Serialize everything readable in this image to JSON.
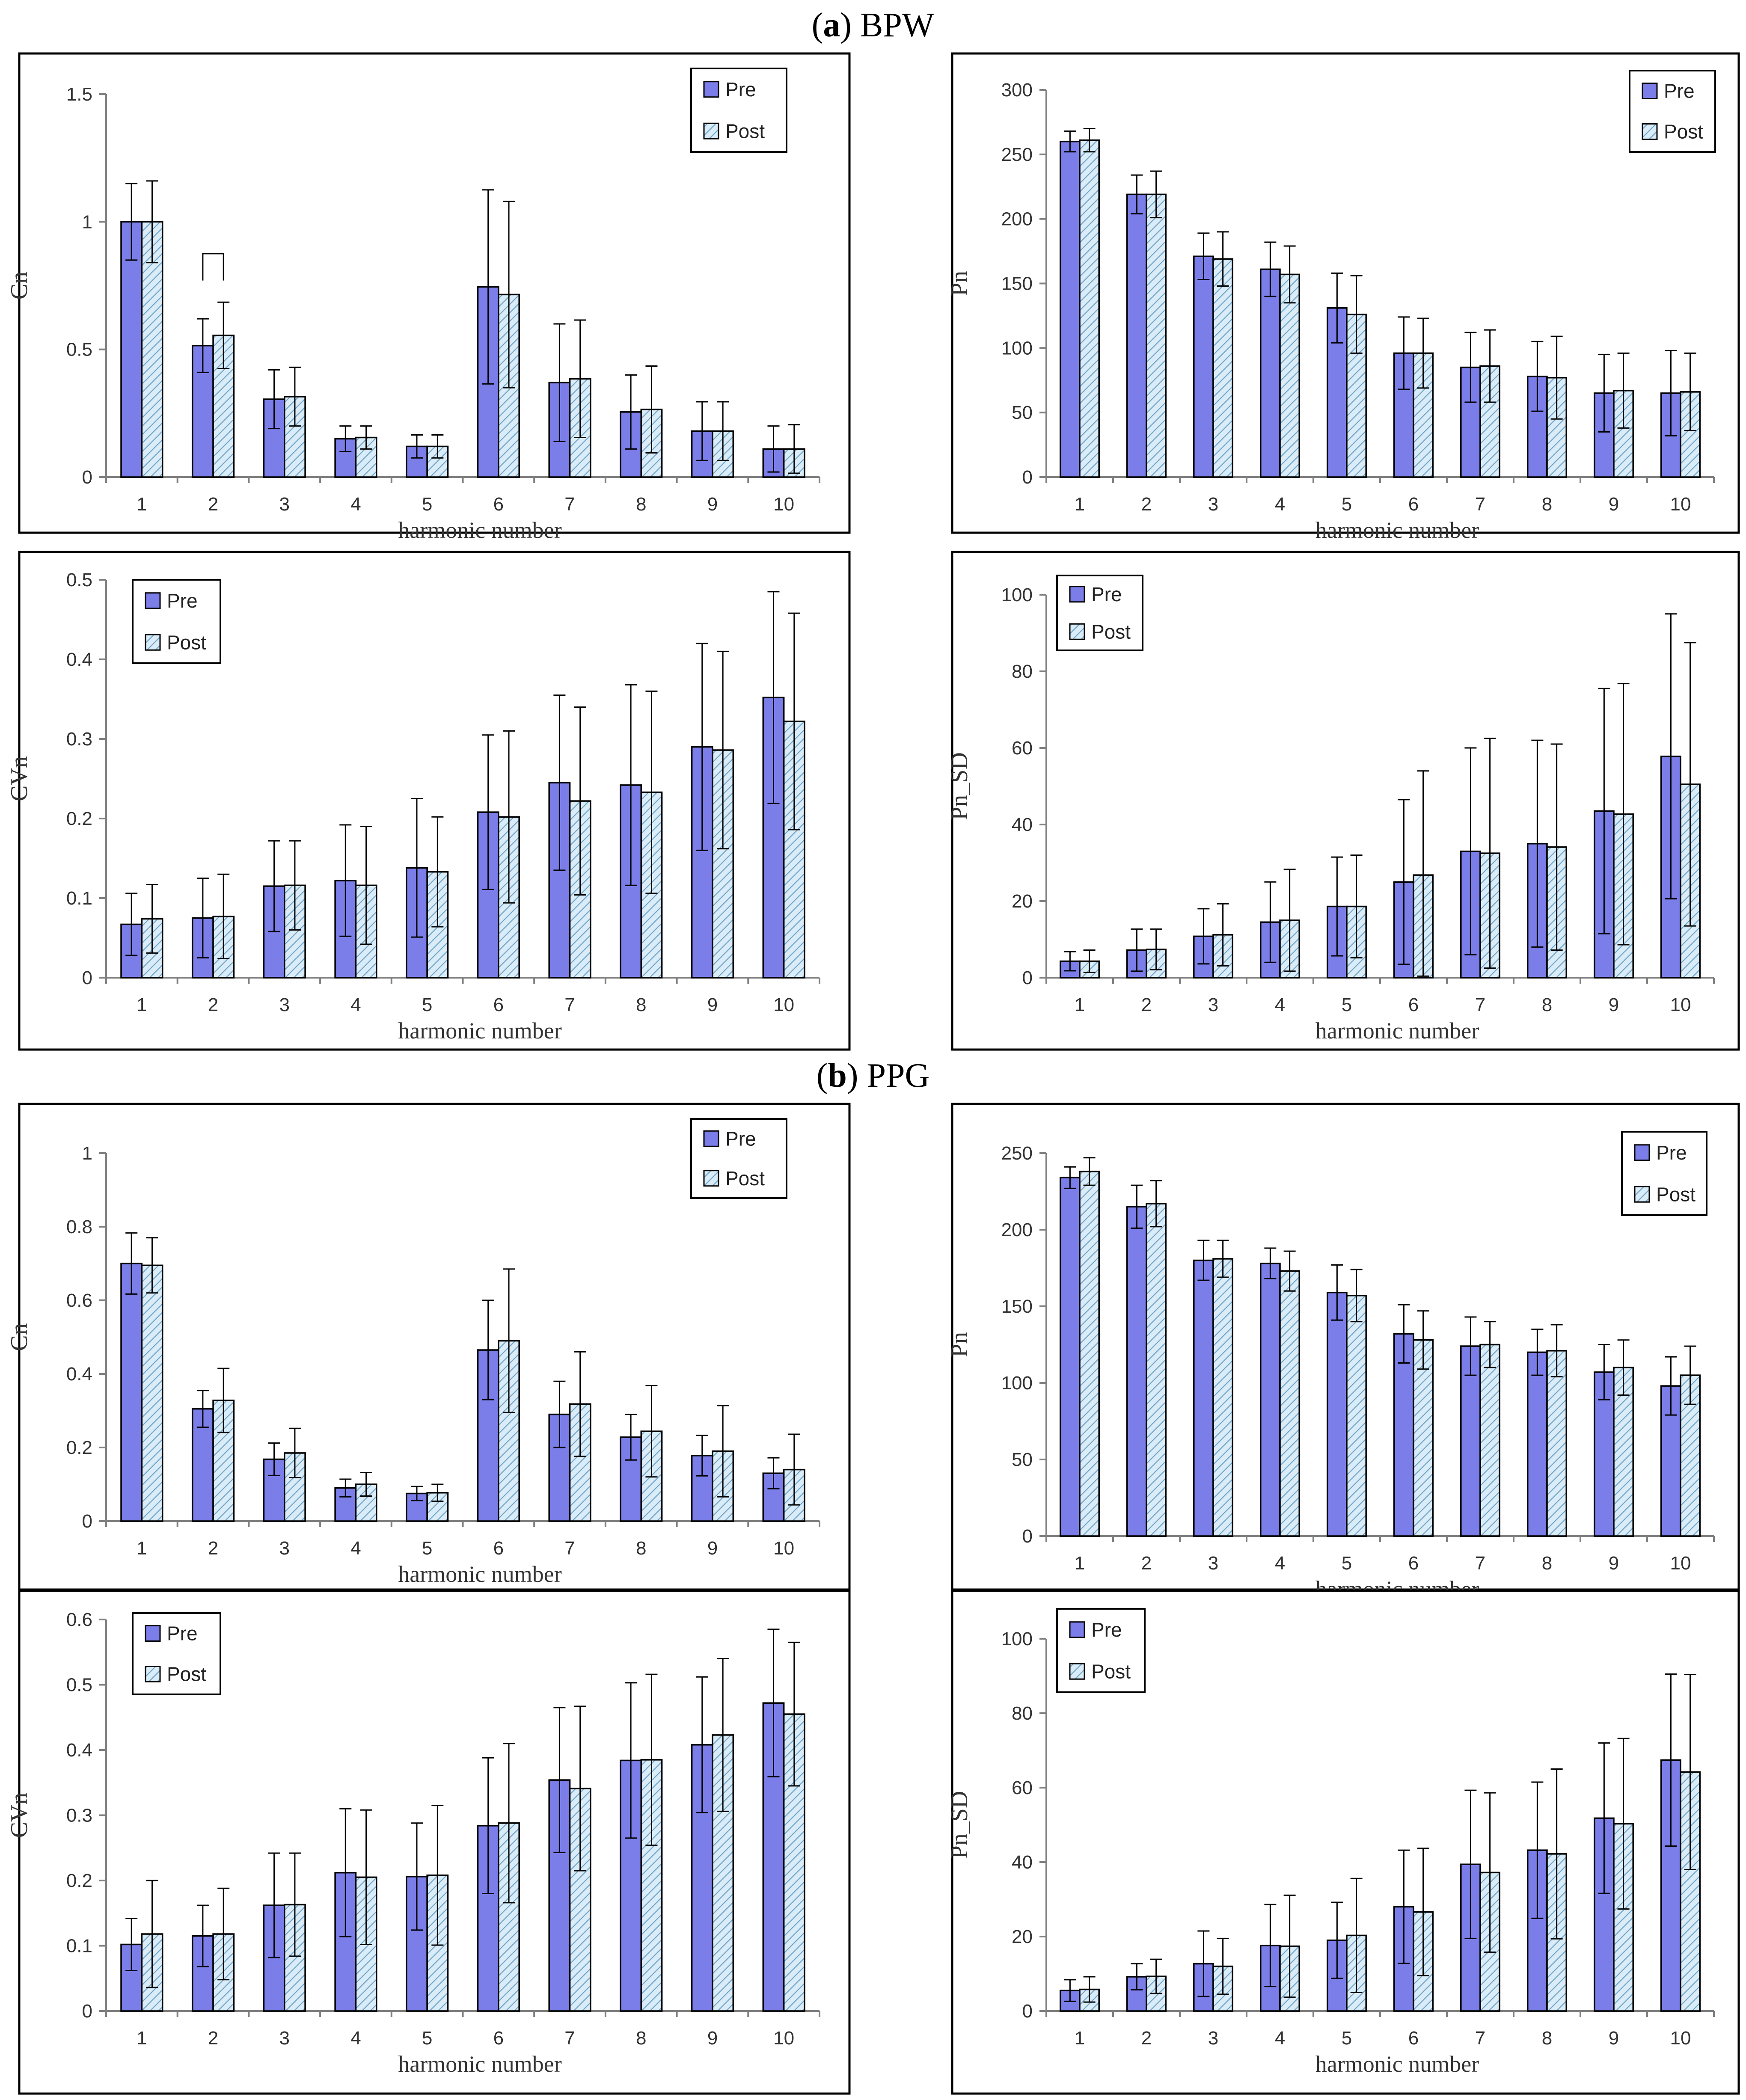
{
  "section_titles": [
    {
      "letter": "a",
      "suffix": " BPW"
    },
    {
      "letter": "b",
      "suffix": " PPG"
    }
  ],
  "legend": {
    "pre": "Pre",
    "post": "Post"
  },
  "colors": {
    "pre_fill": "#7B7EE8",
    "post_fill": "#D9ECF7",
    "post_hatch": "#6FA3C8",
    "frame": "#000000",
    "axis": "#7F7F7F"
  },
  "chart_data": [
    {
      "id": "bpw-cn",
      "type": "bar",
      "title": "",
      "xlabel": "harmonic  number",
      "ylabel": "Cn",
      "categories": [
        "1",
        "2",
        "3",
        "4",
        "5",
        "6",
        "7",
        "8",
        "9",
        "10"
      ],
      "ylim": [
        0,
        1.5
      ],
      "ticks": [
        0,
        0.5,
        1,
        1.5
      ],
      "tick_labels": [
        "0",
        "0.5",
        "1",
        "1.5"
      ],
      "legend_position": "top-right",
      "bracket_category": 2,
      "series": [
        {
          "name": "Pre",
          "values": [
            1.0,
            0.515,
            0.305,
            0.15,
            0.12,
            0.745,
            0.37,
            0.255,
            0.18,
            0.11
          ],
          "err_hi": [
            1.15,
            0.62,
            0.42,
            0.2,
            0.165,
            1.125,
            0.6,
            0.4,
            0.295,
            0.2
          ],
          "err_lo": [
            0.85,
            0.41,
            0.19,
            0.1,
            0.075,
            0.365,
            0.14,
            0.11,
            0.065,
            0.02
          ]
        },
        {
          "name": "Post",
          "values": [
            1.0,
            0.555,
            0.315,
            0.155,
            0.12,
            0.715,
            0.385,
            0.265,
            0.18,
            0.11
          ],
          "err_hi": [
            1.16,
            0.685,
            0.43,
            0.2,
            0.165,
            1.08,
            0.615,
            0.435,
            0.295,
            0.205
          ],
          "err_lo": [
            0.84,
            0.425,
            0.2,
            0.11,
            0.075,
            0.35,
            0.155,
            0.095,
            0.065,
            0.015
          ]
        }
      ]
    },
    {
      "id": "bpw-pn",
      "type": "bar",
      "title": "",
      "xlabel": "harmonic  number",
      "ylabel": "Pn",
      "categories": [
        "1",
        "2",
        "3",
        "4",
        "5",
        "6",
        "7",
        "8",
        "9",
        "10"
      ],
      "ylim": [
        0,
        300
      ],
      "ticks": [
        0,
        50,
        100,
        150,
        200,
        250,
        300
      ],
      "tick_labels": [
        "0",
        "50",
        "100",
        "150",
        "200",
        "250",
        "300"
      ],
      "legend_position": "top-right",
      "series": [
        {
          "name": "Pre",
          "values": [
            260,
            219,
            171,
            161,
            131,
            96,
            85,
            78,
            65,
            65
          ],
          "err_hi": [
            268,
            234,
            189,
            182,
            158,
            124,
            112,
            105,
            95,
            98
          ],
          "err_lo": [
            252,
            204,
            153,
            140,
            104,
            68,
            58,
            51,
            35,
            32
          ]
        },
        {
          "name": "Post",
          "values": [
            261,
            219,
            169,
            157,
            126,
            96,
            86,
            77,
            67,
            66
          ],
          "err_hi": [
            270,
            237,
            190,
            179,
            156,
            123,
            114,
            109,
            96,
            96
          ],
          "err_lo": [
            252,
            201,
            148,
            135,
            96,
            69,
            58,
            45,
            38,
            36
          ]
        }
      ]
    },
    {
      "id": "bpw-cvn",
      "type": "bar",
      "title": "",
      "xlabel": "harmonic  number",
      "ylabel": "CVn",
      "categories": [
        "1",
        "2",
        "3",
        "4",
        "5",
        "6",
        "7",
        "8",
        "9",
        "10"
      ],
      "ylim": [
        0,
        0.5
      ],
      "ticks": [
        0,
        0.1,
        0.2,
        0.3,
        0.4,
        0.5
      ],
      "tick_labels": [
        "0",
        "0.1",
        "0.2",
        "0.3",
        "0.4",
        "0.5"
      ],
      "legend_position": "top-left",
      "series": [
        {
          "name": "Pre",
          "values": [
            0.067,
            0.075,
            0.115,
            0.122,
            0.138,
            0.208,
            0.245,
            0.242,
            0.29,
            0.352
          ],
          "err_hi": [
            0.106,
            0.125,
            0.172,
            0.192,
            0.225,
            0.305,
            0.355,
            0.368,
            0.42,
            0.485
          ],
          "err_lo": [
            0.028,
            0.025,
            0.058,
            0.052,
            0.051,
            0.111,
            0.135,
            0.116,
            0.16,
            0.219
          ]
        },
        {
          "name": "Post",
          "values": [
            0.074,
            0.077,
            0.116,
            0.116,
            0.133,
            0.202,
            0.222,
            0.233,
            0.286,
            0.322
          ],
          "err_hi": [
            0.117,
            0.13,
            0.172,
            0.19,
            0.202,
            0.31,
            0.34,
            0.36,
            0.41,
            0.458
          ],
          "err_lo": [
            0.031,
            0.024,
            0.06,
            0.042,
            0.064,
            0.094,
            0.104,
            0.106,
            0.162,
            0.186
          ]
        }
      ]
    },
    {
      "id": "bpw-pnsd",
      "type": "bar",
      "title": "",
      "xlabel": "harmonic  number",
      "ylabel": "Pn_SD",
      "categories": [
        "1",
        "2",
        "3",
        "4",
        "5",
        "6",
        "7",
        "8",
        "9",
        "10"
      ],
      "ylim": [
        0,
        100
      ],
      "ticks": [
        0,
        20,
        40,
        60,
        80,
        100
      ],
      "tick_labels": [
        "0",
        "20",
        "40",
        "60",
        "80",
        "100"
      ],
      "legend_position": "top-left",
      "series": [
        {
          "name": "Pre",
          "values": [
            4.3,
            7.2,
            10.8,
            14.5,
            18.6,
            25.0,
            33.0,
            35.0,
            43.5,
            57.8
          ],
          "err_hi": [
            6.8,
            12.7,
            18.0,
            25.0,
            31.5,
            46.5,
            60.0,
            62.0,
            75.5,
            95.0
          ],
          "err_lo": [
            1.8,
            1.7,
            3.6,
            4.0,
            5.7,
            3.5,
            6.0,
            8.0,
            11.5,
            20.6
          ]
        },
        {
          "name": "Post",
          "values": [
            4.3,
            7.4,
            11.2,
            15.0,
            18.6,
            26.8,
            32.5,
            34.1,
            42.7,
            50.5
          ],
          "err_hi": [
            7.2,
            12.7,
            19.3,
            28.3,
            32.0,
            54.0,
            62.5,
            61.0,
            76.8,
            87.5
          ],
          "err_lo": [
            1.4,
            2.1,
            3.1,
            1.7,
            5.2,
            0.4,
            2.5,
            7.2,
            8.6,
            13.5
          ]
        }
      ]
    },
    {
      "id": "ppg-cn",
      "type": "bar",
      "title": "",
      "xlabel": "harmonic  number",
      "ylabel": "Cn",
      "categories": [
        "1",
        "2",
        "3",
        "4",
        "5",
        "6",
        "7",
        "8",
        "9",
        "10"
      ],
      "ylim": [
        0,
        1
      ],
      "ticks": [
        0,
        0.2,
        0.4,
        0.6,
        0.8,
        1
      ],
      "tick_labels": [
        "0",
        "0.2",
        "0.4",
        "0.6",
        "0.8",
        "1"
      ],
      "legend_position": "top-right",
      "series": [
        {
          "name": "Pre",
          "values": [
            0.7,
            0.305,
            0.168,
            0.09,
            0.075,
            0.465,
            0.29,
            0.228,
            0.178,
            0.13
          ],
          "err_hi": [
            0.783,
            0.355,
            0.212,
            0.114,
            0.094,
            0.6,
            0.38,
            0.29,
            0.233,
            0.172
          ],
          "err_lo": [
            0.617,
            0.255,
            0.124,
            0.066,
            0.056,
            0.33,
            0.2,
            0.166,
            0.123,
            0.088
          ]
        },
        {
          "name": "Post",
          "values": [
            0.695,
            0.328,
            0.185,
            0.1,
            0.077,
            0.49,
            0.318,
            0.244,
            0.19,
            0.14
          ],
          "err_hi": [
            0.77,
            0.415,
            0.252,
            0.132,
            0.1,
            0.685,
            0.46,
            0.368,
            0.314,
            0.236
          ],
          "err_lo": [
            0.62,
            0.241,
            0.118,
            0.068,
            0.054,
            0.295,
            0.176,
            0.12,
            0.066,
            0.044
          ]
        }
      ]
    },
    {
      "id": "ppg-pn",
      "type": "bar",
      "title": "",
      "xlabel": "harmonic  number",
      "ylabel": "Pn",
      "categories": [
        "1",
        "2",
        "3",
        "4",
        "5",
        "6",
        "7",
        "8",
        "9",
        "10"
      ],
      "ylim": [
        0,
        250
      ],
      "ticks": [
        0,
        50,
        100,
        150,
        200,
        250
      ],
      "tick_labels": [
        "0",
        "50",
        "100",
        "150",
        "200",
        "250"
      ],
      "legend_position": "top-right",
      "series": [
        {
          "name": "Pre",
          "values": [
            234,
            215,
            180,
            178,
            159,
            132,
            124,
            120,
            107,
            98
          ],
          "err_hi": [
            241,
            229,
            193,
            188,
            177,
            151,
            143,
            135,
            125,
            117
          ],
          "err_lo": [
            227,
            201,
            167,
            168,
            141,
            113,
            105,
            105,
            89,
            79
          ]
        },
        {
          "name": "Post",
          "values": [
            238,
            217,
            181,
            173,
            157,
            128,
            125,
            121,
            110,
            105
          ],
          "err_hi": [
            247,
            232,
            193,
            186,
            174,
            147,
            140,
            138,
            128,
            124
          ],
          "err_lo": [
            229,
            202,
            169,
            160,
            140,
            109,
            110,
            104,
            92,
            86
          ]
        }
      ]
    },
    {
      "id": "ppg-cvn",
      "type": "bar",
      "title": "",
      "xlabel": "harmonic  number",
      "ylabel": "CVn",
      "categories": [
        "1",
        "2",
        "3",
        "4",
        "5",
        "6",
        "7",
        "8",
        "9",
        "10"
      ],
      "ylim": [
        0,
        0.6
      ],
      "ticks": [
        0,
        0.1,
        0.2,
        0.3,
        0.4,
        0.5,
        0.6
      ],
      "tick_labels": [
        "0",
        "0.1",
        "0.2",
        "0.3",
        "0.4",
        "0.5",
        "0.6"
      ],
      "legend_position": "top-left",
      "series": [
        {
          "name": "Pre",
          "values": [
            0.102,
            0.115,
            0.162,
            0.212,
            0.206,
            0.284,
            0.354,
            0.384,
            0.408,
            0.472
          ],
          "err_hi": [
            0.142,
            0.162,
            0.242,
            0.31,
            0.288,
            0.388,
            0.465,
            0.503,
            0.512,
            0.585
          ],
          "err_lo": [
            0.062,
            0.068,
            0.082,
            0.114,
            0.124,
            0.18,
            0.243,
            0.265,
            0.304,
            0.359
          ]
        },
        {
          "name": "Post",
          "values": [
            0.118,
            0.118,
            0.163,
            0.205,
            0.208,
            0.288,
            0.341,
            0.385,
            0.423,
            0.455
          ],
          "err_hi": [
            0.2,
            0.188,
            0.242,
            0.308,
            0.315,
            0.41,
            0.467,
            0.516,
            0.54,
            0.565
          ],
          "err_lo": [
            0.036,
            0.048,
            0.084,
            0.102,
            0.101,
            0.166,
            0.215,
            0.254,
            0.306,
            0.345
          ]
        }
      ]
    },
    {
      "id": "ppg-pnsd",
      "type": "bar",
      "title": "",
      "xlabel": "harmonic  number",
      "ylabel": "Pn_SD",
      "categories": [
        "1",
        "2",
        "3",
        "4",
        "5",
        "6",
        "7",
        "8",
        "9",
        "10"
      ],
      "ylim": [
        0,
        100
      ],
      "ticks": [
        0,
        20,
        40,
        60,
        80,
        100
      ],
      "tick_labels": [
        "0",
        "20",
        "40",
        "60",
        "80",
        "100"
      ],
      "legend_position": "top-left",
      "series": [
        {
          "name": "Pre",
          "values": [
            5.5,
            9.2,
            12.7,
            17.6,
            19.0,
            28.0,
            39.4,
            43.2,
            51.8,
            67.4
          ],
          "err_hi": [
            8.4,
            12.7,
            21.5,
            28.6,
            29.2,
            43.2,
            59.3,
            61.5,
            72.0,
            90.5
          ],
          "err_lo": [
            2.6,
            5.7,
            3.9,
            6.6,
            8.8,
            12.8,
            19.5,
            24.9,
            31.6,
            44.3
          ]
        },
        {
          "name": "Post",
          "values": [
            5.8,
            9.3,
            12.0,
            17.4,
            20.3,
            26.6,
            37.2,
            42.2,
            50.3,
            64.2
          ],
          "err_hi": [
            9.2,
            13.9,
            19.5,
            31.1,
            35.6,
            43.7,
            58.6,
            65.0,
            73.2,
            90.4
          ],
          "err_lo": [
            2.4,
            4.7,
            4.5,
            3.7,
            5.0,
            9.5,
            15.8,
            19.4,
            27.4,
            38.0
          ]
        }
      ]
    }
  ]
}
